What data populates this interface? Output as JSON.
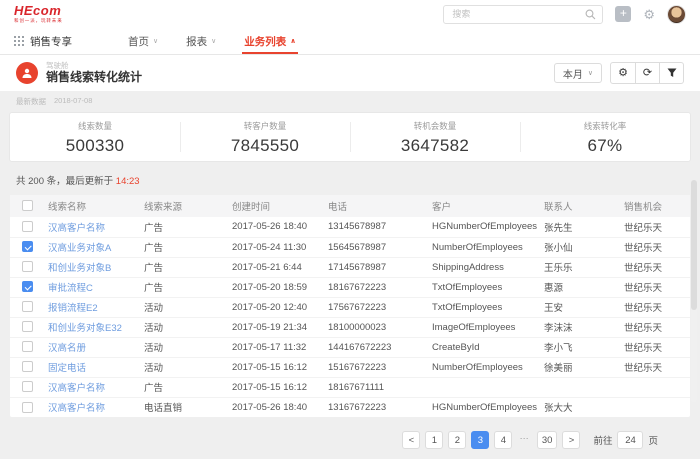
{
  "colors": {
    "brand_red": "#d9252b",
    "accent_red": "#e8432e",
    "link_blue": "#6f9ddf",
    "primary_blue": "#4a8df0"
  },
  "brand": {
    "logo": "HEcom",
    "tagline": "和创一派，玩转未来"
  },
  "topbar": {
    "search_placeholder": "搜索",
    "plus_label": "+",
    "gear_glyph": "⚙"
  },
  "nav": {
    "app_label": "销售专享",
    "tabs": [
      {
        "label": "首页",
        "chevron": "∨",
        "active": false
      },
      {
        "label": "报表",
        "chevron": "∨",
        "active": false
      },
      {
        "label": "业务列表",
        "chevron": "∧",
        "active": true
      }
    ]
  },
  "header": {
    "category": "驾驶舱",
    "title": "销售线索转化统计",
    "period_button": "本月",
    "period_chevron": "∨",
    "gear_glyph": "⚙",
    "refresh_glyph": "⟳",
    "updated_label": "最新数据",
    "updated_date": "2018-07-08"
  },
  "metrics": [
    {
      "label": "线索数量",
      "value": "500330"
    },
    {
      "label": "转客户数量",
      "value": "7845550"
    },
    {
      "label": "转机会数量",
      "value": "3647582"
    },
    {
      "label": "线索转化率",
      "value": "67%"
    }
  ],
  "summary": {
    "prefix": "共 200 条，最后更新于 ",
    "time": "14:23"
  },
  "table": {
    "columns": [
      "线索名称",
      "线索来源",
      "创建时间",
      "电话",
      "客户",
      "联系人",
      "销售机会"
    ],
    "rows": [
      {
        "checked": false,
        "name": "汉高客户名称",
        "source": "广告",
        "created": "2017-05-26 18:40",
        "phone": "13145678987",
        "customer": "HGNumberOfEmployees",
        "contact": "张先生",
        "opportunity": "世纪乐天"
      },
      {
        "checked": true,
        "name": "汉高业务对象A",
        "source": "广告",
        "created": "2017-05-24 11:30",
        "phone": "15645678987",
        "customer": "NumberOfEmployees",
        "contact": "张小仙",
        "opportunity": "世纪乐天"
      },
      {
        "checked": false,
        "name": "和创业务对象B",
        "source": "广告",
        "created": "2017-05-21 6:44",
        "phone": "17145678987",
        "customer": "ShippingAddress",
        "contact": "王乐乐",
        "opportunity": "世纪乐天"
      },
      {
        "checked": true,
        "name": "审批流程C",
        "source": "广告",
        "created": "2017-05-20 18:59",
        "phone": "18167672223",
        "customer": "TxtOfEmployees",
        "contact": "惠源",
        "opportunity": "世纪乐天"
      },
      {
        "checked": false,
        "name": "报销流程E2",
        "source": "活动",
        "created": "2017-05-20 12:40",
        "phone": "17567672223",
        "customer": "TxtOfEmployees",
        "contact": "王安",
        "opportunity": "世纪乐天"
      },
      {
        "checked": false,
        "name": "和创业务对象E32",
        "source": "活动",
        "created": "2017-05-19 21:34",
        "phone": "18100000023",
        "customer": "ImageOfEmployees",
        "contact": "李沫沫",
        "opportunity": "世纪乐天"
      },
      {
        "checked": false,
        "name": "汉高名册",
        "source": "活动",
        "created": "2017-05-17 11:32",
        "phone": "144167672223",
        "customer": "CreateById",
        "contact": "李小飞",
        "opportunity": "世纪乐天"
      },
      {
        "checked": false,
        "name": "固定电话",
        "source": "活动",
        "created": "2017-05-15 16:12",
        "phone": "15167672223",
        "customer": "NumberOfEmployees",
        "contact": "徐美丽",
        "opportunity": "世纪乐天"
      },
      {
        "checked": false,
        "name": "汉高客户名称",
        "source": "广告",
        "created": "2017-05-15 16:12",
        "phone": "18167671111",
        "customer": "",
        "contact": "",
        "opportunity": ""
      },
      {
        "checked": false,
        "name": "汉高客户名称",
        "source": "电话直销",
        "created": "2017-05-26 18:40",
        "phone": "13167672223",
        "customer": "HGNumberOfEmployees",
        "contact": "张大大",
        "opportunity": ""
      }
    ]
  },
  "pagination": {
    "prev": "<",
    "next": ">",
    "pages": [
      "1",
      "2",
      "3",
      "4",
      "…",
      "30"
    ],
    "active": "3",
    "ellipsis_index": 4,
    "goto_label": "前往",
    "goto_value": "24",
    "page_unit": "页"
  }
}
